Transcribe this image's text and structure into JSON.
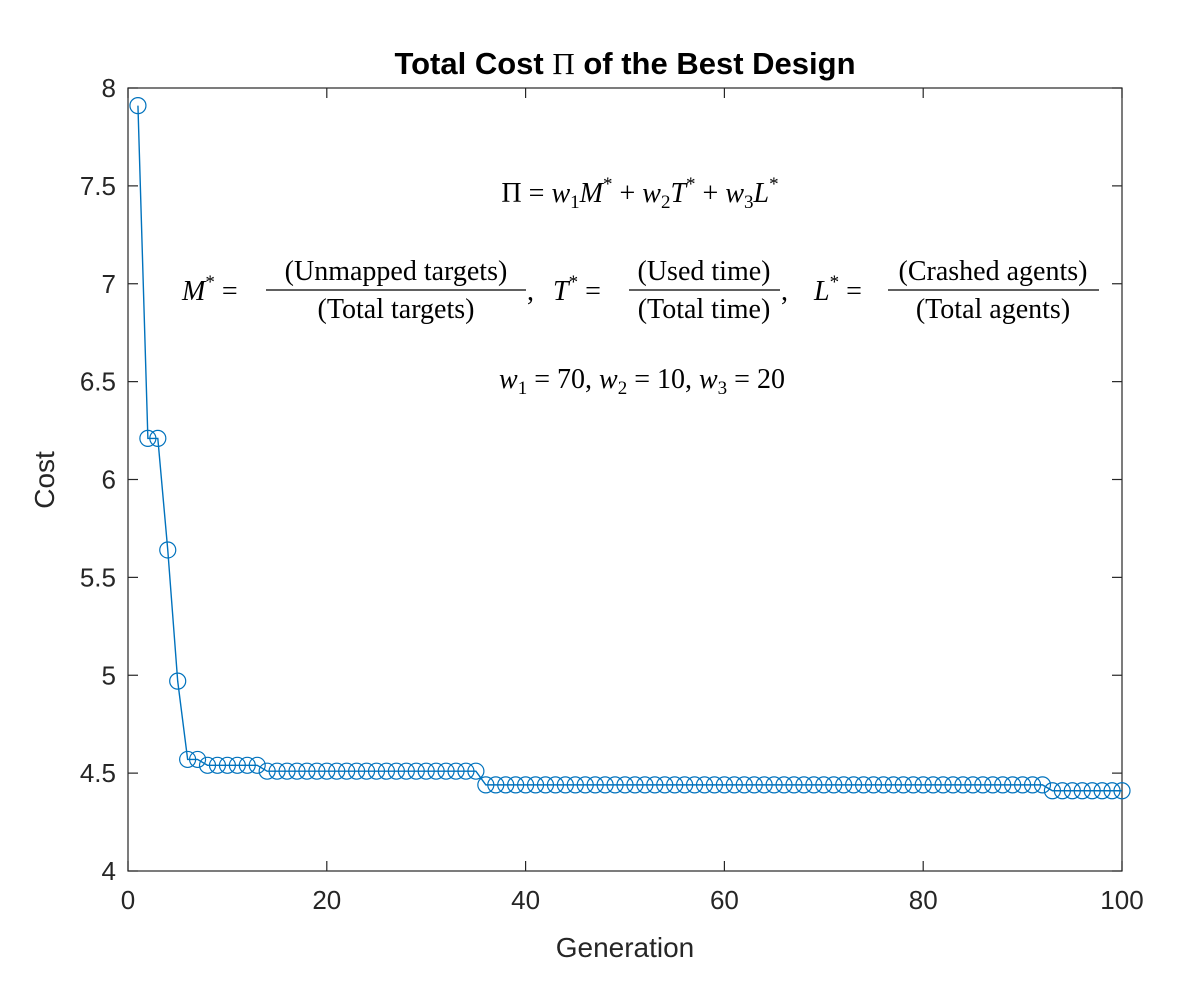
{
  "chart_data": {
    "type": "line",
    "title_parts": [
      "Total Cost ",
      "Π",
      " of the Best Design"
    ],
    "xlabel": "Generation",
    "ylabel": "Cost",
    "xlim": [
      0,
      100
    ],
    "ylim": [
      4,
      8
    ],
    "xticks": [
      0,
      20,
      40,
      60,
      80,
      100
    ],
    "yticks": [
      4,
      4.5,
      5,
      5.5,
      6,
      6.5,
      7,
      7.5,
      8
    ],
    "ytick_labels": [
      "4",
      "4.5",
      "5",
      "5.5",
      "6",
      "6.5",
      "7",
      "7.5",
      "8"
    ],
    "grid": false,
    "marker": "circle",
    "line_color": "#0072BD",
    "x": [
      1,
      2,
      3,
      4,
      5,
      6,
      7,
      8,
      9,
      10,
      11,
      12,
      13,
      14,
      15,
      16,
      17,
      18,
      19,
      20,
      21,
      22,
      23,
      24,
      25,
      26,
      27,
      28,
      29,
      30,
      31,
      32,
      33,
      34,
      35,
      36,
      37,
      38,
      39,
      40,
      41,
      42,
      43,
      44,
      45,
      46,
      47,
      48,
      49,
      50,
      51,
      52,
      53,
      54,
      55,
      56,
      57,
      58,
      59,
      60,
      61,
      62,
      63,
      64,
      65,
      66,
      67,
      68,
      69,
      70,
      71,
      72,
      73,
      74,
      75,
      76,
      77,
      78,
      79,
      80,
      81,
      82,
      83,
      84,
      85,
      86,
      87,
      88,
      89,
      90,
      91,
      92,
      93,
      94,
      95,
      96,
      97,
      98,
      99,
      100
    ],
    "y": [
      7.91,
      6.21,
      6.21,
      5.64,
      4.97,
      4.57,
      4.57,
      4.54,
      4.54,
      4.54,
      4.54,
      4.54,
      4.54,
      4.51,
      4.51,
      4.51,
      4.51,
      4.51,
      4.51,
      4.51,
      4.51,
      4.51,
      4.51,
      4.51,
      4.51,
      4.51,
      4.51,
      4.51,
      4.51,
      4.51,
      4.51,
      4.51,
      4.51,
      4.51,
      4.51,
      4.44,
      4.44,
      4.44,
      4.44,
      4.44,
      4.44,
      4.44,
      4.44,
      4.44,
      4.44,
      4.44,
      4.44,
      4.44,
      4.44,
      4.44,
      4.44,
      4.44,
      4.44,
      4.44,
      4.44,
      4.44,
      4.44,
      4.44,
      4.44,
      4.44,
      4.44,
      4.44,
      4.44,
      4.44,
      4.44,
      4.44,
      4.44,
      4.44,
      4.44,
      4.44,
      4.44,
      4.44,
      4.44,
      4.44,
      4.44,
      4.44,
      4.44,
      4.44,
      4.44,
      4.44,
      4.44,
      4.44,
      4.44,
      4.44,
      4.44,
      4.44,
      4.44,
      4.44,
      4.44,
      4.44,
      4.44,
      4.44,
      4.41,
      4.41,
      4.41,
      4.41,
      4.41,
      4.41,
      4.41,
      4.41
    ],
    "annotations": {
      "line1": {
        "pi": "Π",
        "eq": "=",
        "w1": "w",
        "w1_sub": "1",
        "M": "M",
        "star": "*",
        "plus": "+",
        "w2": "w",
        "w2_sub": "2",
        "T": "T",
        "w3": "w",
        "w3_sub": "3",
        "L": "L"
      },
      "line2": {
        "M": "M",
        "T": "T",
        "L": "L",
        "star": "*",
        "eq": "=",
        "comma": ",",
        "m_num": "(Unmapped targets)",
        "m_den": "(Total targets)",
        "t_num": "(Used time)",
        "t_den": "(Total time)",
        "l_num": "(Crashed agents)",
        "l_den": "(Total agents)"
      },
      "line3": {
        "w": "w",
        "eq": "=",
        "comma": ",",
        "sub1": "1",
        "val1": "70",
        "sub2": "2",
        "val2": "10",
        "sub3": "3",
        "val3": "20"
      }
    }
  }
}
